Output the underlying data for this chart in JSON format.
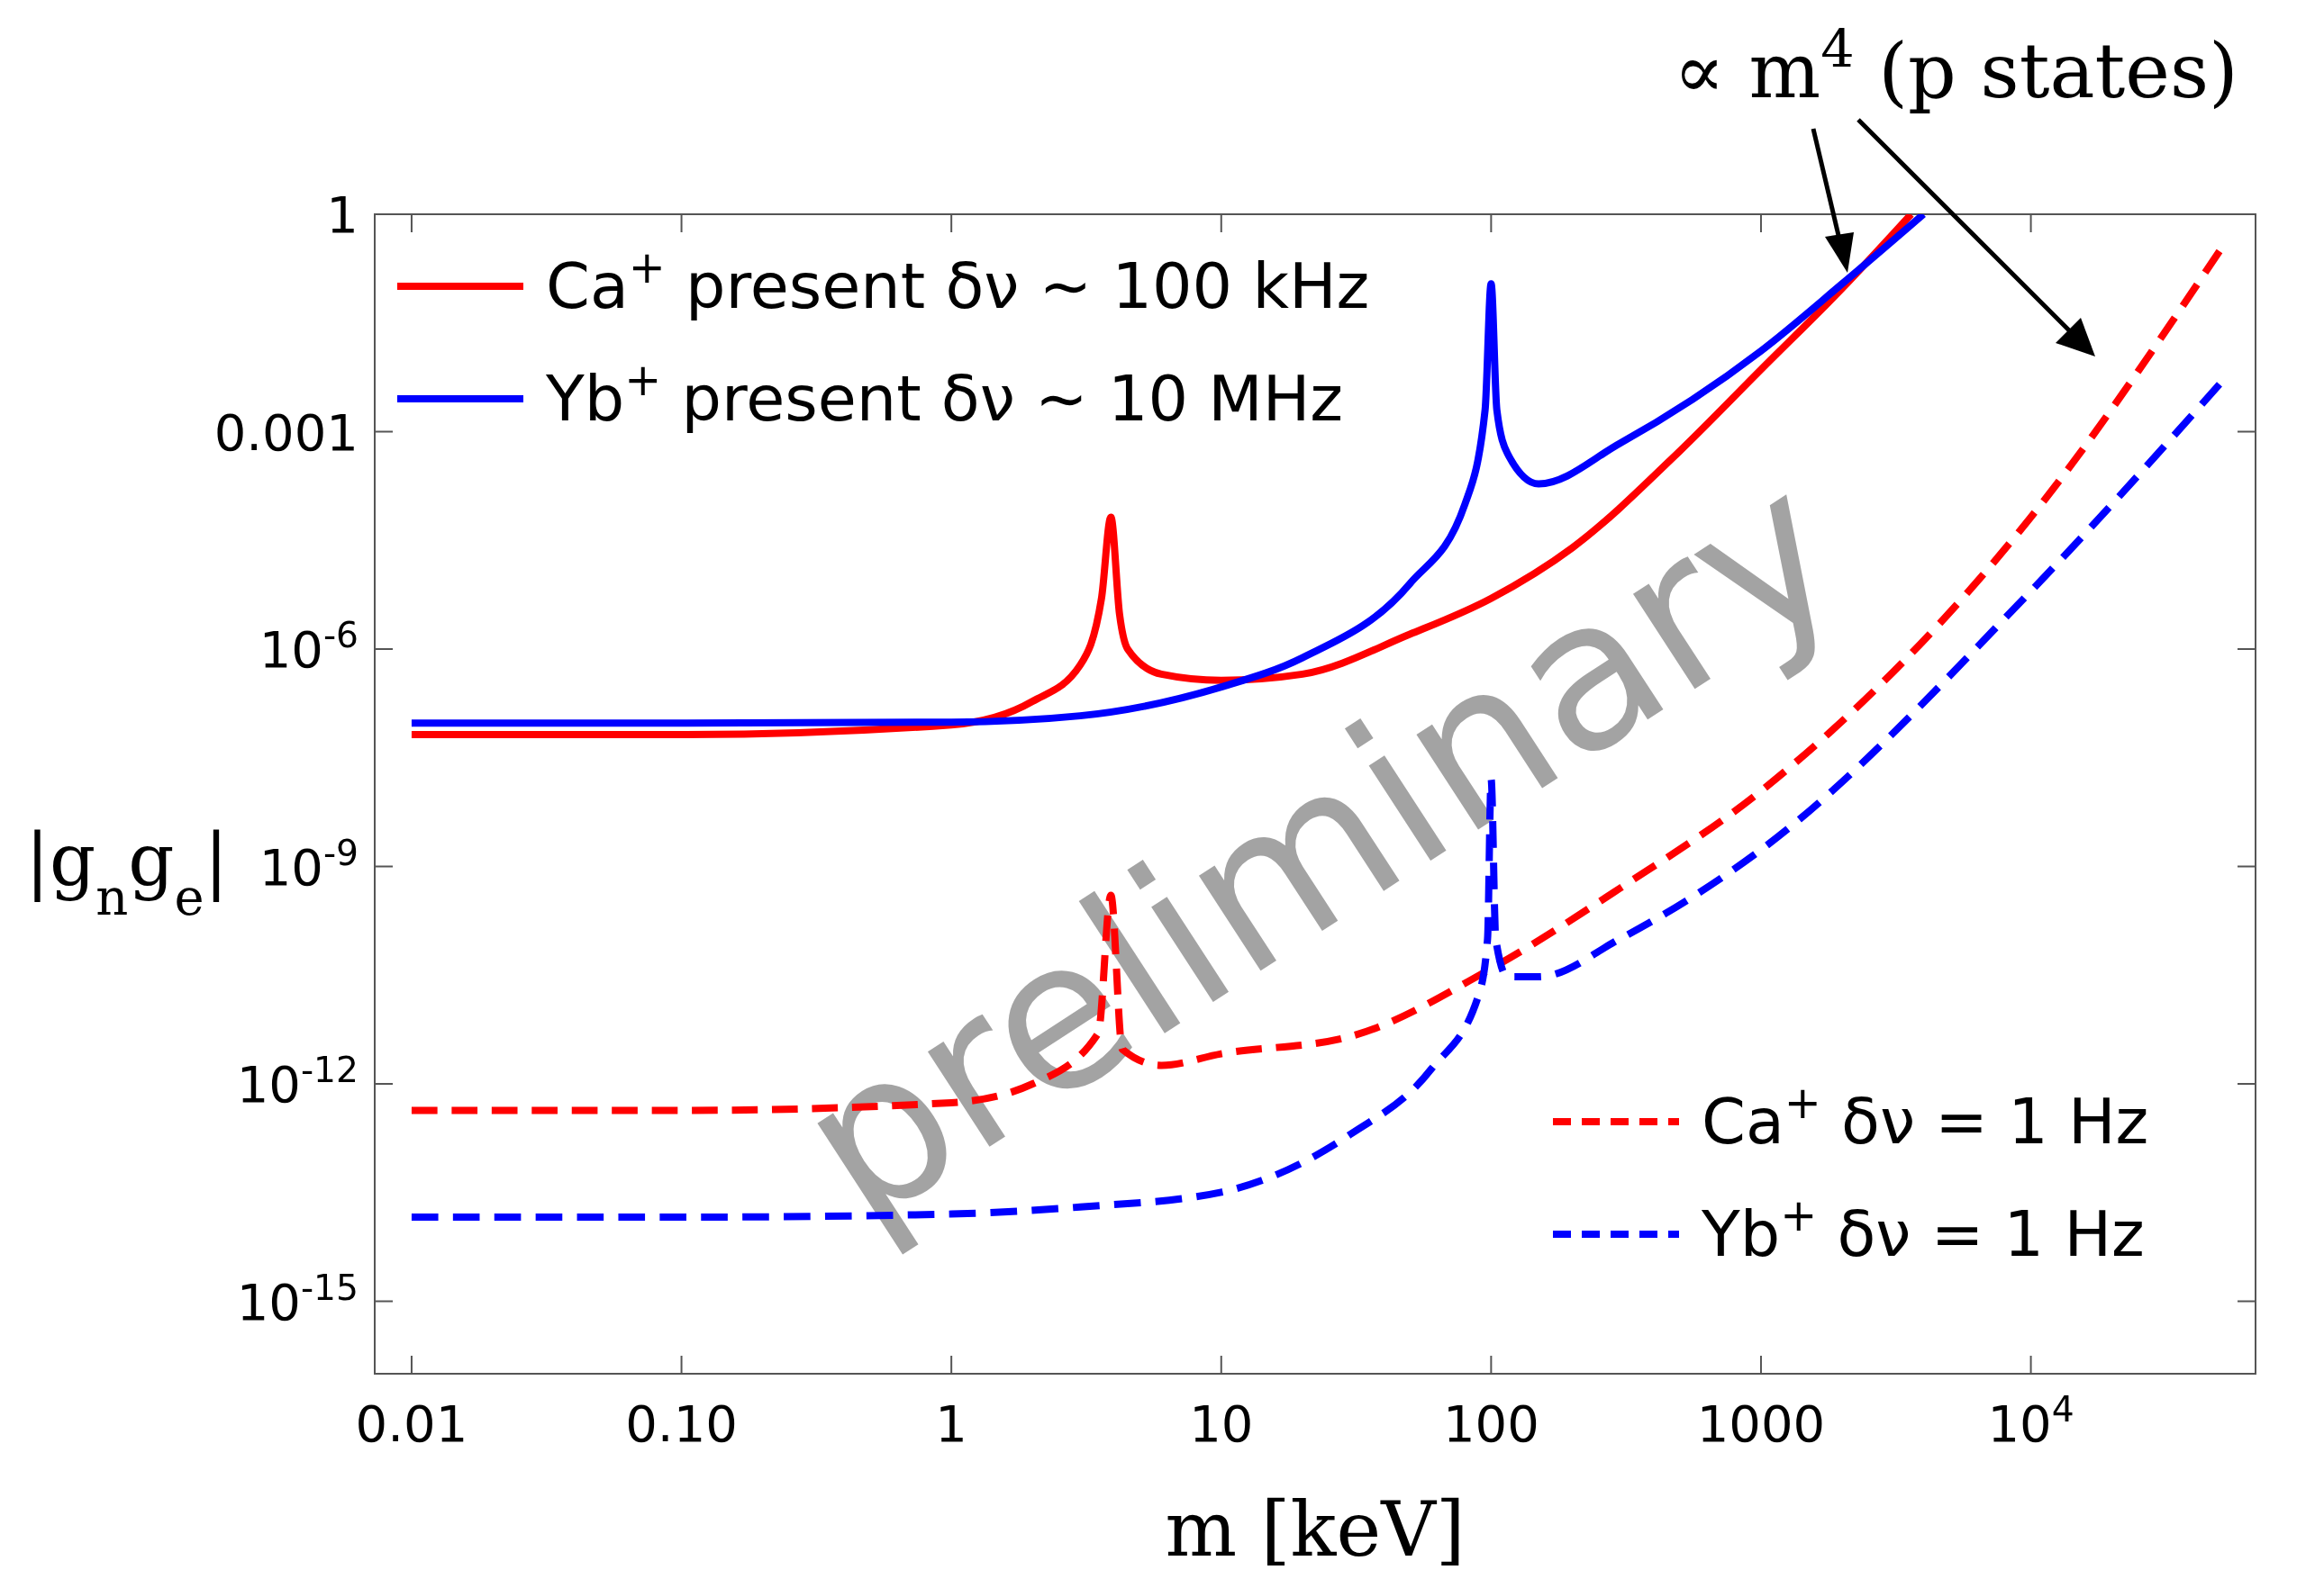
{
  "chart_data": {
    "type": "line",
    "xlabel": "m [keV]",
    "ylabel": "|g$_{n}$g$_{e}$|",
    "log": "xy",
    "grid": false,
    "legend": "top left",
    "xlim": [
      0.0073,
      68000
    ],
    "ylim": [
      1e-16,
      1
    ],
    "xticks": [
      0.01,
      {
        "value": 0.1,
        "label": "0.10"
      },
      1,
      10,
      100,
      1000,
      {
        "value": 10000,
        "label": "10$^{4}$"
      }
    ],
    "yticks": [
      1,
      0.001,
      {
        "value": 1e-06,
        "label": "10$^{-6}$"
      },
      {
        "value": 1e-09,
        "label": "10$^{-9}$"
      },
      {
        "value": 1e-12,
        "label": "10$^{-12}$"
      },
      {
        "value": 1e-15,
        "label": "10$^{-15}$"
      }
    ],
    "annotations": [
      "∝ m$^{4}$ (p states)",
      "preliminary"
    ],
    "series": [
      {
        "name": "Ca$^{+}$ present δν ∼ 100 kHz",
        "color": "#ff0000",
        "line_style": "solid",
        "x": [
          0.01,
          0.1,
          1,
          2,
          3,
          3.6,
          3.9,
          4.2,
          4.5,
          6,
          10,
          20,
          50,
          100,
          200,
          500,
          1000,
          2000,
          3600
        ],
        "values": [
          6.6e-08,
          6.6e-08,
          9e-08,
          1.9e-07,
          6e-07,
          5e-06,
          6.6e-05,
          3e-06,
          1e-06,
          4.5e-07,
          3.7e-07,
          4.5e-07,
          1.6e-06,
          5e-06,
          2.5e-05,
          0.00054,
          0.0072,
          0.095,
          1
        ]
      },
      {
        "name": "Yb$^{+}$ present δν ∼ 10 MHz",
        "color": "#0000ff",
        "line_style": "solid",
        "x": [
          0.01,
          0.1,
          1,
          3,
          10,
          20,
          50,
          80,
          95,
          100,
          105,
          115,
          150,
          300,
          1000,
          2000,
          4000
        ],
        "values": [
          9.5e-08,
          9.5e-08,
          9.8e-08,
          1.2e-07,
          3e-07,
          7.6e-07,
          8e-06,
          0.0001,
          0.002,
          0.11,
          0.002,
          0.0005,
          0.00019,
          0.00069,
          0.013,
          0.11,
          1
        ]
      },
      {
        "name": "Ca$^{+}$ δν = 1 Hz",
        "color": "#ff0000",
        "line_style": "dashed",
        "x": [
          0.01,
          0.1,
          1,
          2,
          3.5,
          3.9,
          4.3,
          6,
          10,
          30,
          100,
          300,
          1000,
          10000,
          50000
        ],
        "values": [
          4.3e-13,
          4.3e-13,
          5.5e-13,
          1e-12,
          5e-12,
          4e-10,
          3e-12,
          1.8e-12,
          2.6e-12,
          4.5e-12,
          3.9e-11,
          5e-10,
          1.1e-08,
          6.6e-05,
          0.31
        ]
      },
      {
        "name": "Yb$^{+}$ δν = 1 Hz",
        "color": "#0000ff",
        "line_style": "dashed",
        "x": [
          0.01,
          0.1,
          1,
          3,
          10,
          30,
          60,
          90,
          97,
          100,
          104,
          115,
          150,
          300,
          1000,
          10000,
          50000
        ],
        "values": [
          1.45e-14,
          1.45e-14,
          1.6e-14,
          2e-14,
          3.2e-14,
          2e-13,
          1.6e-12,
          1.7e-11,
          1e-10,
          1.6e-08,
          1e-10,
          3e-11,
          3e-11,
          1e-10,
          1.7e-09,
          6.3e-06,
          0.0045
        ]
      }
    ]
  }
}
